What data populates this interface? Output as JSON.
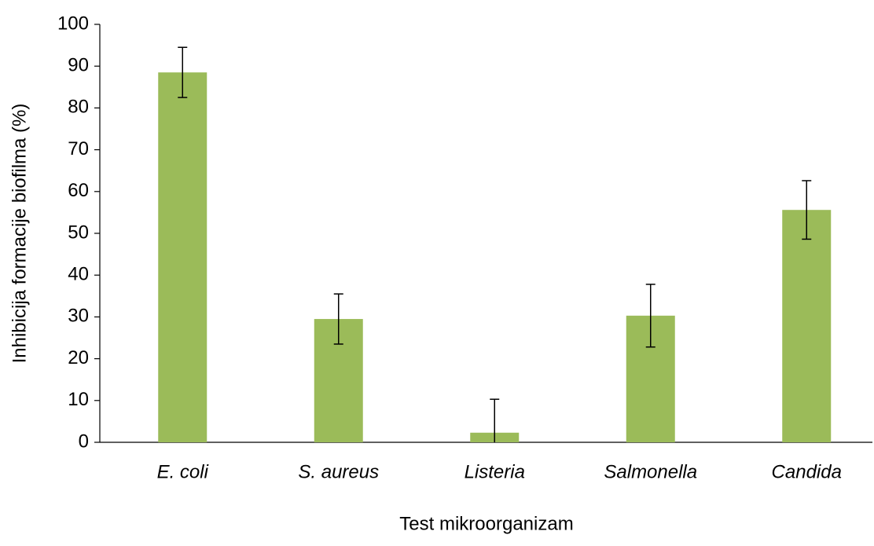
{
  "chart_data": {
    "type": "bar",
    "xlabel": "Test mikroorganizam",
    "ylabel": "Inhibicija formacije biofilma (%)",
    "categories": [
      "E. coli",
      "S. aureus",
      "Listeria",
      "Salmonella",
      "Candida"
    ],
    "values": [
      88.5,
      29.5,
      2.3,
      30.3,
      55.6
    ],
    "error": [
      6,
      6,
      8,
      7.5,
      7
    ],
    "color": "#9bbb59",
    "ylim": [
      0,
      100
    ],
    "yticks": [
      0,
      10,
      20,
      30,
      40,
      50,
      60,
      70,
      80,
      90,
      100
    ],
    "grid": false
  }
}
